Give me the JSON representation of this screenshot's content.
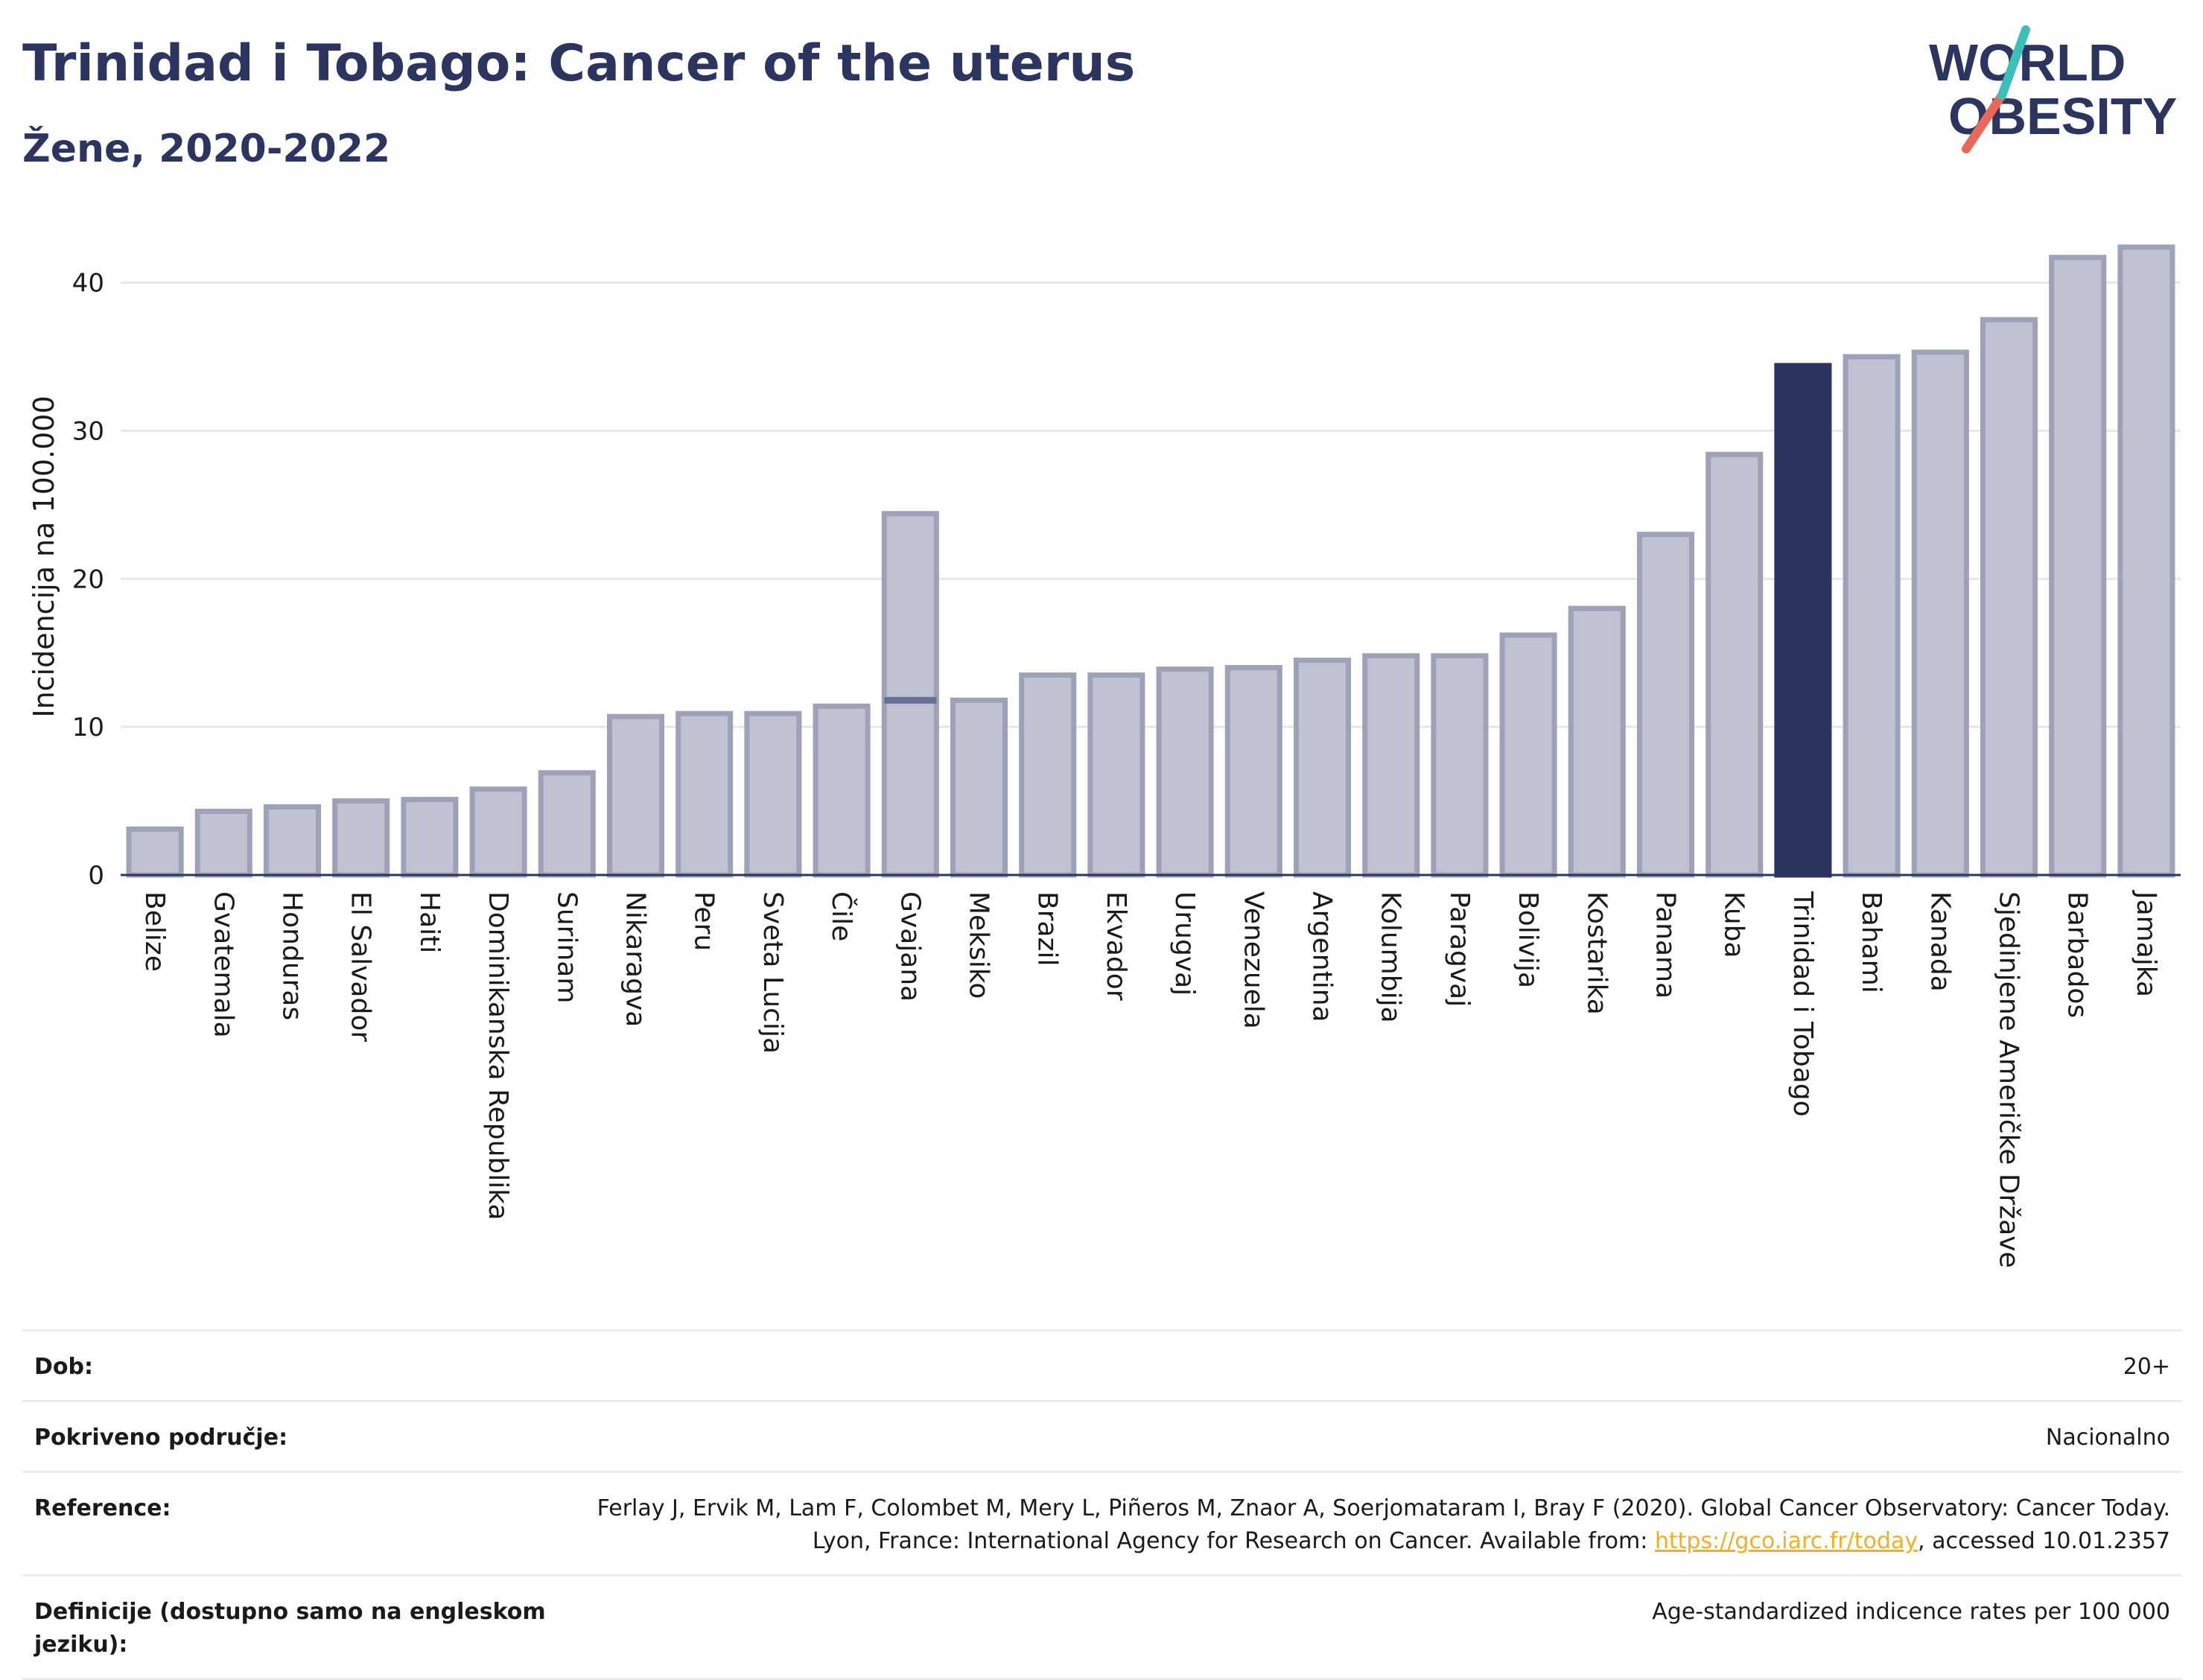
{
  "header": {
    "title": "Trinidad i Tobago: Cancer of the uterus",
    "subtitle": "Žene, 2020-2022"
  },
  "logo": {
    "line1": "WORLD",
    "line2": "OBESITY"
  },
  "colors": {
    "highlight": "#2b3560",
    "bar": "#bfc2d0",
    "bar_border": "#9ea2b9",
    "link": "#f2b01e",
    "logo_teal": "#3bbfb8",
    "logo_coral": "#e8685a"
  },
  "chart_data": {
    "type": "bar",
    "ylabel": "Incidencija na 100.000",
    "ylim": [
      0,
      44
    ],
    "yticks": [
      0,
      10,
      20,
      30,
      40
    ],
    "grid": true,
    "highlight": "Trinidad i Tobago",
    "categories": [
      "Belize",
      "Gvatemala",
      "Honduras",
      "El Salvador",
      "Haiti",
      "Dominikanska Republika",
      "Surinam",
      "Nikaragva",
      "Peru",
      "Sveta Lucija",
      "Čile",
      "Gvajana",
      "Meksiko",
      "Brazil",
      "Ekvador",
      "Urugvaj",
      "Venezuela",
      "Argentina",
      "Kolumbija",
      "Paragvaj",
      "Bolivija",
      "Kostarika",
      "Panama",
      "Kuba",
      "Trinidad i Tobago",
      "Bahami",
      "Kanada",
      "Sjedinjene Američke Države",
      "Barbados",
      "Jamajka"
    ],
    "values": [
      3.1,
      4.3,
      4.6,
      5.0,
      5.1,
      5.8,
      6.9,
      10.7,
      10.9,
      10.9,
      11.4,
      24.4,
      11.8,
      13.5,
      13.5,
      13.9,
      14.0,
      14.5,
      14.8,
      14.8,
      16.2,
      18.0,
      23.0,
      28.4,
      34.4,
      35.0,
      35.3,
      37.5,
      41.7,
      42.4
    ],
    "secondary_marker": {
      "category": "Gvajana",
      "value": 11.8
    }
  },
  "meta": [
    {
      "label": "Dob:",
      "value": "20+"
    },
    {
      "label": "Pokriveno područje:",
      "value": "Nacionalno"
    },
    {
      "label": "Reference:",
      "value_pre": "Ferlay J, Ervik M, Lam F, Colombet M, Mery L, Piñeros M, Znaor A, Soerjomataram I, Bray F (2020). Global Cancer Observatory: Cancer Today. Lyon, France: International Agency for Research on Cancer. Available from: ",
      "link": "https://gco.iarc.fr/today",
      "value_post": ", accessed 10.01.2357"
    },
    {
      "label": "Definicije (dostupno samo na engleskom jeziku):",
      "value": "Age-standardized indicence rates per 100 000"
    }
  ]
}
